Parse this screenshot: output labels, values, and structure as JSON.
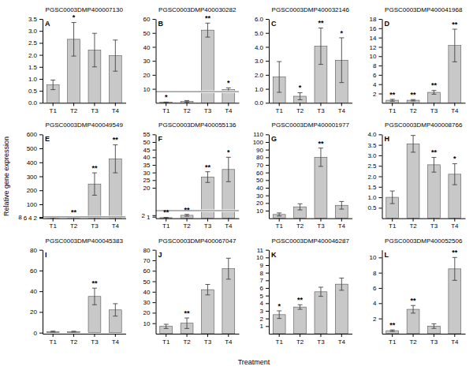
{
  "chart_data": [
    {
      "type": "bar",
      "panel_label": "A",
      "title": "PGSC0003DMP400007130",
      "xlabel": "Treatment",
      "ylabel": "Relative gene expression",
      "categories": [
        "T1",
        "T2",
        "T3",
        "T4"
      ],
      "values": [
        0.75,
        2.65,
        2.2,
        1.97
      ],
      "errors": [
        0.2,
        0.7,
        0.7,
        0.65
      ],
      "color": "#c8c8c8",
      "ylim": [
        0,
        3.5
      ],
      "yticks": [
        {
          "value": 0,
          "label": "0.0"
        },
        0.5,
        {
          "value": 1,
          "label": "1.0"
        },
        1.5,
        {
          "value": 2,
          "label": "2.0"
        },
        2.5,
        {
          "value": 3,
          "label": "3.0"
        },
        3.5
      ],
      "annotations": [
        {
          "text": "*",
          "category": "T2"
        }
      ]
    },
    {
      "type": "bar",
      "panel_label": "B",
      "title": "PGSC0003DMP400030282",
      "categories": [
        "T1",
        "T2",
        "T3",
        "T4"
      ],
      "values": [
        0.4,
        1.1,
        52.0,
        9.5
      ],
      "errors": [
        0.15,
        0.55,
        5.0,
        1.2
      ],
      "color": "#c8c8c8",
      "ylim": [
        0,
        60
      ],
      "yticks": [
        10,
        20,
        30,
        40,
        50,
        60
      ],
      "ybreak": 8,
      "annotations": [
        {
          "text": "*",
          "category": "T1"
        },
        {
          "text": "**",
          "category": "T3"
        },
        {
          "text": "*",
          "category": "T4"
        }
      ]
    },
    {
      "type": "bar",
      "panel_label": "C",
      "title": "PGSC0003DMP400032146",
      "categories": [
        "T1",
        "T2",
        "T3",
        "T4"
      ],
      "values": [
        1.85,
        0.47,
        4.05,
        3.05
      ],
      "errors": [
        1.1,
        0.25,
        1.3,
        1.6
      ],
      "color": "#c8c8c8",
      "ylim": [
        0,
        6.0
      ],
      "yticks": [
        {
          "value": 0,
          "label": "0.0"
        },
        {
          "value": 1,
          "label": "1.0"
        },
        {
          "value": 2,
          "label": "2.0"
        },
        {
          "value": 3,
          "label": "3.0"
        },
        {
          "value": 4,
          "label": "4.0"
        },
        {
          "value": 5,
          "label": "5.0"
        },
        {
          "value": 6,
          "label": "6.0"
        }
      ],
      "annotations": [
        {
          "text": "*",
          "category": "T2"
        },
        {
          "text": "**",
          "category": "T3"
        },
        {
          "text": "*",
          "category": "T4"
        }
      ]
    },
    {
      "type": "bar",
      "panel_label": "D",
      "title": "PGSC0003DMP400041968",
      "categories": [
        "T1",
        "T2",
        "T3",
        "T4"
      ],
      "values": [
        0.55,
        0.55,
        2.25,
        12.3
      ],
      "errors": [
        0.2,
        0.15,
        0.4,
        3.5
      ],
      "color": "#c8c8c8",
      "ylim": [
        0,
        18
      ],
      "yticks": [
        2,
        4,
        6,
        8,
        10,
        12,
        14,
        16,
        18
      ],
      "annotations": [
        {
          "text": "**",
          "category": "T1"
        },
        {
          "text": "**",
          "category": "T2"
        },
        {
          "text": "**",
          "category": "T3"
        },
        {
          "text": "**",
          "category": "T4"
        }
      ]
    },
    {
      "type": "bar",
      "panel_label": "E",
      "title": "PGSC0003DMP400049549",
      "categories": [
        "T1",
        "T2",
        "T3",
        "T4"
      ],
      "values": [
        1.0,
        5.8,
        245.0,
        425.0
      ],
      "errors": [
        0.3,
        1.5,
        80.0,
        100.0
      ],
      "color": "#c8c8c8",
      "ylim": [
        0,
        600
      ],
      "yticks": [
        2,
        4,
        6,
        8,
        100,
        200,
        300,
        400,
        500,
        600
      ],
      "ybreak": 10,
      "annotations": [
        {
          "text": "**",
          "category": "T2"
        },
        {
          "text": "**",
          "category": "T3"
        },
        {
          "text": "**",
          "category": "T4"
        }
      ]
    },
    {
      "type": "bar",
      "panel_label": "F",
      "title": "PGSC0003DMP400055136",
      "categories": [
        "T1",
        "T2",
        "T3",
        "T4"
      ],
      "values": [
        0.4,
        1.95,
        27.0,
        32.0
      ],
      "errors": [
        0.15,
        0.6,
        3.5,
        8.0
      ],
      "color": "#c8c8c8",
      "ylim": [
        0,
        55
      ],
      "yticks": [
        1,
        2,
        20,
        25,
        30,
        35,
        40,
        45,
        50,
        55
      ],
      "ybreak": 5,
      "annotations": [
        {
          "text": "**",
          "category": "T1"
        },
        {
          "text": "**",
          "category": "T2"
        },
        {
          "text": "**",
          "category": "T3"
        },
        {
          "text": "*",
          "category": "T4"
        }
      ]
    },
    {
      "type": "bar",
      "panel_label": "G",
      "title": "PGSC0003DMP400001977",
      "categories": [
        "T1",
        "T2",
        "T3",
        "T4"
      ],
      "values": [
        5.0,
        15.0,
        80.0,
        17.0
      ],
      "errors": [
        2.0,
        4.0,
        12.0,
        5.0
      ],
      "color": "#c8c8c8",
      "ylim": [
        0,
        110
      ],
      "yticks": [
        10,
        20,
        30,
        40,
        50,
        60,
        70,
        80,
        90,
        100,
        110
      ],
      "annotations": [
        {
          "text": "**",
          "category": "T3"
        }
      ]
    },
    {
      "type": "bar",
      "panel_label": "H",
      "title": "PGSC0003DMP400008766",
      "categories": [
        "T1",
        "T2",
        "T3",
        "T4"
      ],
      "values": [
        1.0,
        3.55,
        2.55,
        2.1
      ],
      "errors": [
        0.3,
        0.4,
        0.35,
        0.5
      ],
      "color": "#c8c8c8",
      "ylim": [
        0,
        4.0
      ],
      "yticks": [
        0.5,
        {
          "value": 1,
          "label": "1.0"
        },
        1.5,
        {
          "value": 2,
          "label": "2.0"
        },
        2.5,
        {
          "value": 3,
          "label": "3.0"
        },
        3.5,
        {
          "value": 4,
          "label": "4.0"
        }
      ],
      "annotations": [
        {
          "text": "**",
          "category": "T3"
        },
        {
          "text": "*",
          "category": "T4"
        }
      ]
    },
    {
      "type": "bar",
      "panel_label": "I",
      "title": "PGSC0003DMP400045383",
      "categories": [
        "T1",
        "T2",
        "T3",
        "T4"
      ],
      "values": [
        1.0,
        1.0,
        35.0,
        22.0
      ],
      "errors": [
        0.5,
        0.4,
        8.0,
        6.0
      ],
      "color": "#c8c8c8",
      "ylim": [
        -1,
        80
      ],
      "yticks": [
        0,
        20,
        40,
        60,
        80
      ],
      "annotations": [
        {
          "text": "**",
          "category": "T3"
        }
      ]
    },
    {
      "type": "bar",
      "panel_label": "J",
      "title": "PGSC0003DMP400067047",
      "categories": [
        "T1",
        "T2",
        "T3",
        "T4"
      ],
      "values": [
        7.0,
        10.0,
        42.0,
        62.0
      ],
      "errors": [
        2.0,
        5.0,
        5.0,
        10.0
      ],
      "color": "#c8c8c8",
      "ylim": [
        0,
        80
      ],
      "yticks": [
        10,
        20,
        30,
        40,
        50,
        60,
        70,
        80
      ],
      "annotations": [
        {
          "text": "**",
          "category": "T2"
        }
      ]
    },
    {
      "type": "bar",
      "panel_label": "K",
      "title": "PGSC0003DMP400046287",
      "categories": [
        "T1",
        "T2",
        "T3",
        "T4"
      ],
      "values": [
        2.5,
        3.5,
        5.5,
        6.5
      ],
      "errors": [
        0.5,
        0.3,
        0.6,
        0.8
      ],
      "color": "#c8c8c8",
      "ylim": [
        0,
        11
      ],
      "yticks": [
        1,
        2,
        3,
        4,
        5,
        6,
        7,
        8,
        9,
        10,
        11
      ],
      "annotations": [
        {
          "text": "*",
          "category": "T1"
        },
        {
          "text": "**",
          "category": "T2"
        }
      ]
    },
    {
      "type": "bar",
      "panel_label": "L",
      "title": "PGSC0003DMP400052506",
      "categories": [
        "T1",
        "T2",
        "T3",
        "T4"
      ],
      "values": [
        0.4,
        3.2,
        1.0,
        8.5
      ],
      "errors": [
        0.1,
        0.5,
        0.3,
        1.5
      ],
      "color": "#c8c8c8",
      "ylim": [
        0,
        11
      ],
      "yticks": [
        2,
        4,
        6,
        8,
        10
      ],
      "annotations": [
        {
          "text": "**",
          "category": "T1"
        },
        {
          "text": "**",
          "category": "T2"
        },
        {
          "text": "**",
          "category": "T4"
        }
      ]
    }
  ]
}
